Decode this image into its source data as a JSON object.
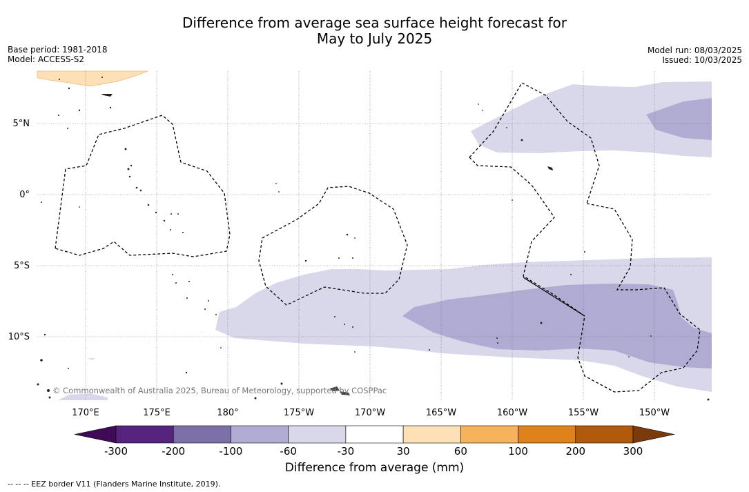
{
  "title": {
    "line1": "Difference from average sea surface height forecast for",
    "line2": "May to July 2025"
  },
  "meta_left": {
    "base_period": "Base period: 1981-2018",
    "model": "Model: ACCESS-S2"
  },
  "meta_right": {
    "model_run": "Model run: 08/03/2025",
    "issued": "Issued: 10/03/2025"
  },
  "map": {
    "lat_labels": [
      "5°N",
      "0°",
      "5°S",
      "10°S"
    ],
    "lon_labels": [
      "170°E",
      "175°E",
      "180°",
      "175°W",
      "170°W",
      "165°W",
      "160°W",
      "155°W",
      "150°W"
    ],
    "copyright": "© Commonwealth of Australia 2025, Bureau of Meteorology, supported by COSPPac",
    "colors": {
      "light_purple": "#d8d8ea",
      "mid_purple": "#b0abd2",
      "light_orange": "#fde0b6"
    }
  },
  "colorbar": {
    "title": "Difference from average (mm)",
    "ticks": [
      "-300",
      "-200",
      "-100",
      "-60",
      "-30",
      "30",
      "60",
      "100",
      "200",
      "300"
    ],
    "colors": [
      "#3f0a58",
      "#56237f",
      "#7d6fa8",
      "#b0abd2",
      "#d8d8ea",
      "#ffffff",
      "#fde0b6",
      "#f7b35c",
      "#e0821c",
      "#b25a0b",
      "#7b3a0a"
    ]
  },
  "footnote": "--  --  -- EEZ border V11 (Flanders Marine Institute, 2019)."
}
